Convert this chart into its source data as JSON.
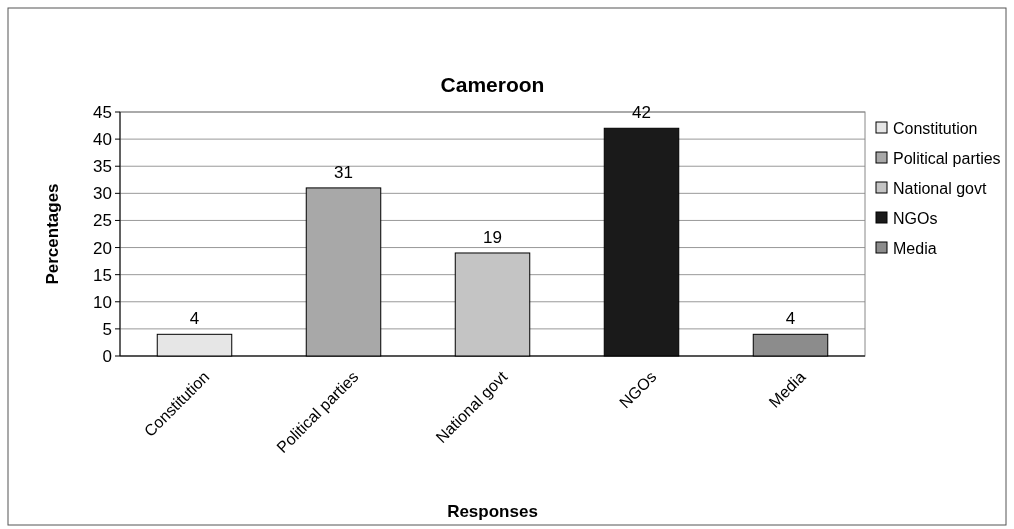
{
  "chart_data": {
    "type": "bar",
    "title": "Cameroon",
    "xlabel": "Responses",
    "ylabel": "Percentages",
    "categories": [
      "Constitution",
      "Political parties",
      "National govt",
      "NGOs",
      "Media"
    ],
    "series": [
      {
        "name": "Constitution",
        "color": "#e6e6e6",
        "values": [
          4,
          null,
          null,
          null,
          null
        ]
      },
      {
        "name": "Political parties",
        "color": "#a8a8a8",
        "values": [
          null,
          31,
          null,
          null,
          null
        ]
      },
      {
        "name": "National govt",
        "color": "#c4c4c4",
        "values": [
          null,
          null,
          19,
          null,
          null
        ]
      },
      {
        "name": "NGOs",
        "color": "#1a1a1a",
        "values": [
          null,
          null,
          null,
          42,
          null
        ]
      },
      {
        "name": "Media",
        "color": "#8c8c8c",
        "values": [
          null,
          null,
          null,
          null,
          4
        ]
      }
    ],
    "ylim": [
      0,
      45
    ],
    "yticks": [
      0,
      5,
      10,
      15,
      20,
      25,
      30,
      35,
      40,
      45
    ],
    "grid": "y",
    "data_labels": true,
    "legend": "right"
  }
}
